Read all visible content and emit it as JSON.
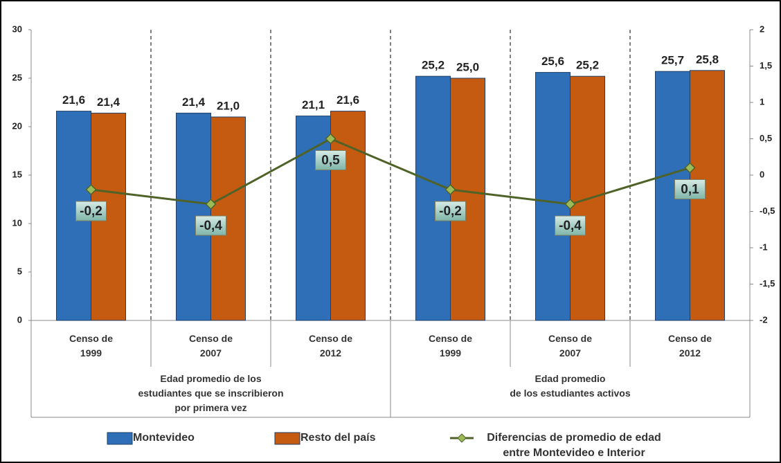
{
  "chart_data": {
    "type": "bar_line",
    "categories": [
      "Censo de 1999",
      "Censo de 2007",
      "Censo de 2012",
      "Censo de 1999",
      "Censo de 2007",
      "Censo de 2012"
    ],
    "group_labels": [
      [
        "Edad promedio de los",
        "estudiantes que se inscribieron",
        "por primera vez"
      ],
      [
        "Edad promedio",
        "de los estudiantes activos"
      ]
    ],
    "series": [
      {
        "name": "Montevideo",
        "color": "#2e6fb7",
        "values": [
          21.6,
          21.4,
          21.1,
          25.2,
          25.6,
          25.7
        ],
        "value_labels": [
          "21,6",
          "21,4",
          "21,1",
          "25,2",
          "25,6",
          "25,7"
        ]
      },
      {
        "name": "Resto del país",
        "color": "#c55a11",
        "values": [
          21.4,
          21.0,
          21.6,
          25.0,
          25.2,
          25.8
        ],
        "value_labels": [
          "21,4",
          "21,0",
          "21,6",
          "25,0",
          "25,2",
          "25,8"
        ]
      },
      {
        "name": "Diferencias de promedio de edad entre Montevideo e Interior",
        "color": "#4f6228",
        "axis": "y2",
        "values": [
          -0.2,
          -0.4,
          0.5,
          -0.2,
          -0.4,
          0.1
        ],
        "value_labels": [
          "-0,2",
          "-0,4",
          "0,5",
          "-0,2",
          "-0,4",
          "0,1"
        ]
      }
    ],
    "ylim": [
      0,
      30
    ],
    "yticks": [
      0,
      5,
      10,
      15,
      20,
      25,
      30
    ],
    "y2lim": [
      -2,
      2
    ],
    "y2ticks": [
      -2,
      {
        "value": -1.5,
        "label": "-1,5"
      },
      -1,
      {
        "value": -0.5,
        "label": "-0,5"
      },
      0,
      {
        "value": 0.5,
        "label": "0,5"
      },
      1,
      {
        "value": 1.5,
        "label": "1,5"
      },
      2
    ]
  }
}
